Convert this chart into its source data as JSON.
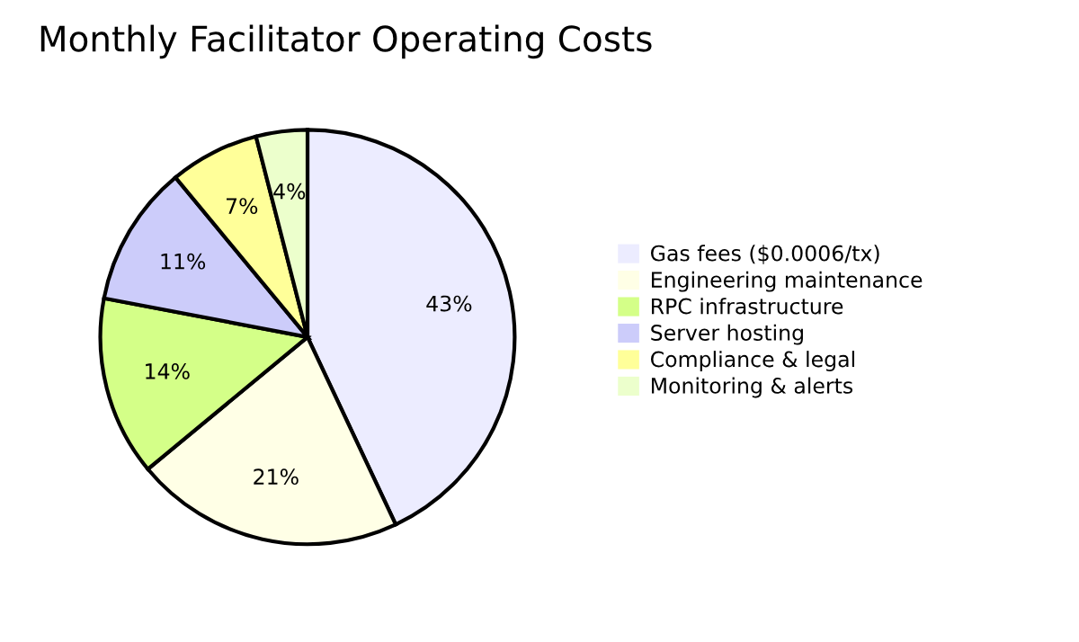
{
  "chart_data": {
    "type": "pie",
    "title": "Monthly Facilitator Operating Costs",
    "categories": [
      "Gas fees ($0.0006/tx)",
      "Engineering maintenance",
      "RPC infrastructure",
      "Server hosting",
      "Compliance & legal",
      "Monitoring & alerts"
    ],
    "values": [
      43,
      21,
      14,
      11,
      7,
      4
    ],
    "colors": [
      "#ececff",
      "#ffffe6",
      "#d4ff88",
      "#ccccfa",
      "#ffff99",
      "#ecffcc"
    ],
    "value_labels": [
      "43%",
      "21%",
      "14%",
      "11%",
      "7%",
      "4%"
    ],
    "legend": "right"
  }
}
